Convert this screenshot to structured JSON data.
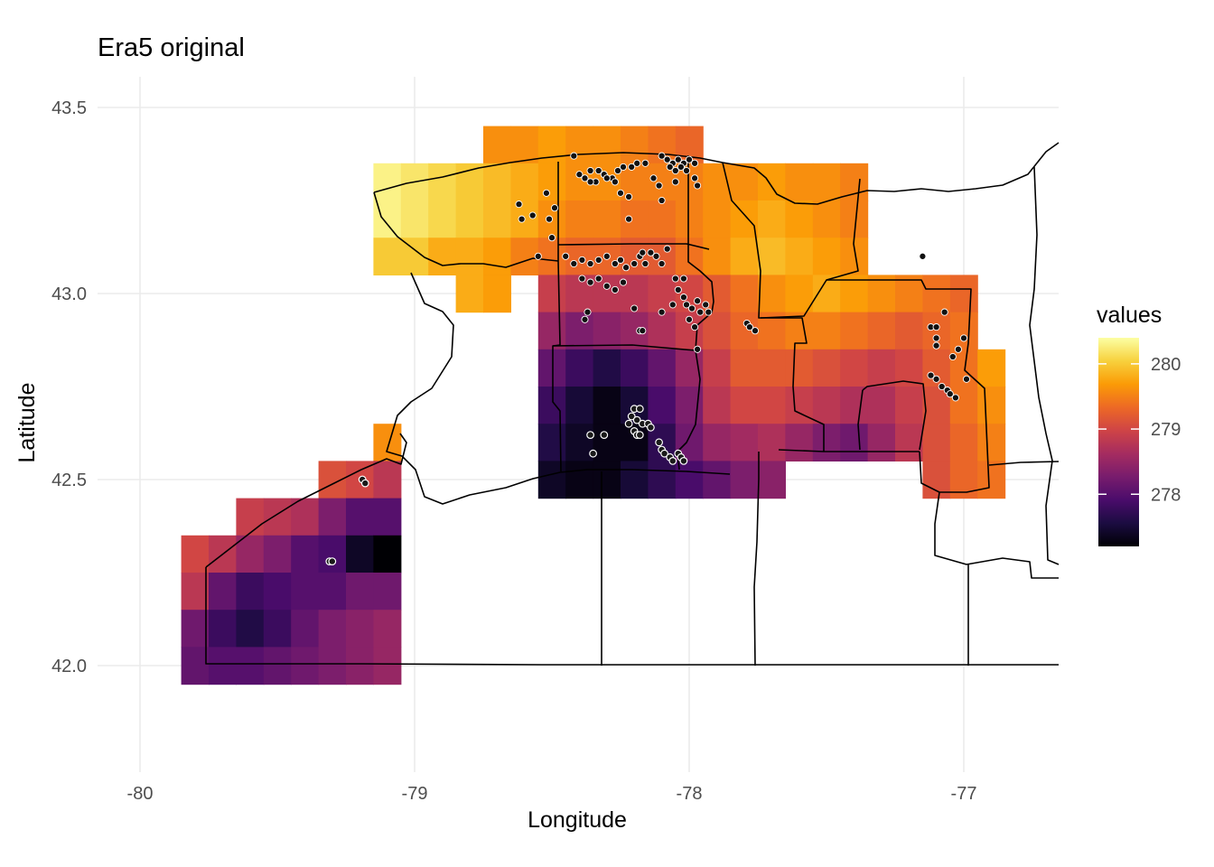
{
  "title": "Era5 original",
  "colors": {
    "gradient": [
      "#000004",
      "#1b0c41",
      "#4a0c6b",
      "#781c6d",
      "#a52c60",
      "#cf4446",
      "#ed6925",
      "#fb9b06",
      "#f7d13d",
      "#fcffa4"
    ],
    "grid": "#ebebeb",
    "outline": "#000000",
    "point_fill": "#111111",
    "point_stroke": "#ffffff"
  },
  "chart_data": {
    "type": "heatmap",
    "xlabel": "Longitude",
    "ylabel": "Latitude",
    "xlim": [
      -80.0,
      -76.6
    ],
    "ylim": [
      41.75,
      43.6
    ],
    "x_ticks": [
      {
        "value": -80,
        "label": "-80"
      },
      {
        "value": -79,
        "label": "-79"
      },
      {
        "value": -78,
        "label": "-78"
      },
      {
        "value": -77,
        "label": "-77"
      }
    ],
    "y_ticks": [
      {
        "value": 42.0,
        "label": "42.0"
      },
      {
        "value": 42.5,
        "label": "42.5"
      },
      {
        "value": 43.0,
        "label": "43.0"
      },
      {
        "value": 43.5,
        "label": "43.5"
      }
    ],
    "grid": true,
    "cell_size_deg": 0.1,
    "legend": {
      "title": "values",
      "position": "right",
      "min": 277.2,
      "max": 280.4,
      "ticks": [
        {
          "value": 278,
          "label": "278"
        },
        {
          "value": 279,
          "label": "279"
        },
        {
          "value": 280,
          "label": "280"
        }
      ]
    },
    "blocks": [
      {
        "lon": [
          -78.75,
          -77.95
        ],
        "lat": [
          43.35,
          43.45
        ],
        "values": [
          [
            279.6,
            279.6,
            279.7,
            279.6,
            279.6,
            279.5,
            279.4,
            279.3
          ]
        ]
      },
      {
        "lon": [
          -79.15,
          -77.35
        ],
        "lat": [
          43.25,
          43.35
        ],
        "values": [
          [
            280.3,
            280.2,
            280.1,
            280.0,
            279.9,
            279.8,
            279.7,
            279.6,
            279.6,
            279.5,
            279.5,
            279.5,
            279.6,
            279.6,
            279.7,
            279.6,
            279.6,
            279.5
          ]
        ]
      },
      {
        "lon": [
          -79.15,
          -77.35
        ],
        "lat": [
          43.15,
          43.25
        ],
        "values": [
          [
            280.3,
            280.2,
            280.1,
            280.0,
            279.9,
            279.8,
            279.6,
            279.5,
            279.5,
            279.4,
            279.4,
            279.5,
            279.6,
            279.7,
            279.8,
            279.7,
            279.6,
            279.5
          ]
        ]
      },
      {
        "lon": [
          -79.15,
          -77.35
        ],
        "lat": [
          43.05,
          43.15
        ],
        "values": [
          [
            280.0,
            280.0,
            279.8,
            279.8,
            279.7,
            279.5,
            279.4,
            279.3,
            279.3,
            279.2,
            279.2,
            279.4,
            279.6,
            279.8,
            279.9,
            279.8,
            279.7,
            279.6
          ]
        ]
      },
      {
        "lon": [
          -78.85,
          -78.65
        ],
        "lat": [
          42.95,
          43.05
        ],
        "values": [
          [
            279.8,
            279.7
          ]
        ]
      },
      {
        "lon": [
          -78.55,
          -76.95
        ],
        "lat": [
          42.95,
          43.05
        ],
        "values": [
          [
            278.9,
            278.8,
            278.8,
            278.8,
            278.9,
            279.0,
            279.2,
            279.4,
            279.6,
            279.7,
            279.8,
            279.7,
            279.6,
            279.5,
            279.4,
            279.3
          ]
        ]
      },
      {
        "lon": [
          -78.55,
          -76.95
        ],
        "lat": [
          42.85,
          42.95
        ],
        "values": [
          [
            278.5,
            278.3,
            278.4,
            278.5,
            278.7,
            278.9,
            279.1,
            279.3,
            279.4,
            279.5,
            279.5,
            279.4,
            279.3,
            279.2,
            279.3,
            279.4
          ]
        ]
      },
      {
        "lon": [
          -78.55,
          -76.85
        ],
        "lat": [
          42.75,
          42.85
        ],
        "values": [
          [
            278.1,
            277.8,
            277.6,
            277.8,
            278.1,
            278.5,
            278.9,
            279.2,
            279.2,
            279.2,
            279.1,
            279.0,
            278.9,
            279.0,
            279.2,
            279.4,
            279.7
          ]
        ]
      },
      {
        "lon": [
          -78.55,
          -76.85
        ],
        "lat": [
          42.65,
          42.75
        ],
        "values": [
          [
            277.8,
            277.5,
            277.3,
            277.5,
            277.9,
            278.3,
            278.8,
            279.0,
            279.0,
            278.9,
            278.8,
            278.7,
            278.7,
            278.9,
            279.1,
            279.4,
            279.6
          ]
        ]
      },
      {
        "lon": [
          -78.55,
          -76.85
        ],
        "lat": [
          42.55,
          42.65
        ],
        "values": [
          [
            277.6,
            277.4,
            277.3,
            277.3,
            277.7,
            278.2,
            278.5,
            278.6,
            278.7,
            278.5,
            278.3,
            278.2,
            278.5,
            278.8,
            279.1,
            279.3,
            279.5
          ]
        ]
      },
      {
        "lon": [
          -78.55,
          -77.65
        ],
        "lat": [
          42.45,
          42.55
        ],
        "values": [
          [
            277.4,
            277.3,
            277.3,
            277.5,
            277.7,
            277.9,
            278.1,
            278.3,
            278.4
          ]
        ]
      },
      {
        "lon": [
          -77.15,
          -76.85
        ],
        "lat": [
          42.45,
          42.55
        ],
        "values": [
          [
            279.1,
            279.3,
            279.4
          ]
        ]
      },
      {
        "lon": [
          -79.15,
          -79.05
        ],
        "lat": [
          42.55,
          42.65
        ],
        "values": [
          [
            279.6
          ]
        ]
      },
      {
        "lon": [
          -79.35,
          -79.05
        ],
        "lat": [
          42.45,
          42.55
        ],
        "values": [
          [
            279.1,
            279.0,
            278.8
          ]
        ]
      },
      {
        "lon": [
          -79.65,
          -79.05
        ],
        "lat": [
          42.35,
          42.45
        ],
        "values": [
          [
            278.9,
            278.8,
            278.7,
            278.3,
            278.0,
            278.0
          ]
        ]
      },
      {
        "lon": [
          -79.85,
          -79.05
        ],
        "lat": [
          42.25,
          42.35
        ],
        "values": [
          [
            279.0,
            278.8,
            278.5,
            278.3,
            278.0,
            277.9,
            277.4,
            277.2
          ]
        ]
      },
      {
        "lon": [
          -79.85,
          -79.05
        ],
        "lat": [
          42.15,
          42.25
        ],
        "values": [
          [
            278.8,
            278.1,
            277.8,
            277.9,
            278.0,
            278.0,
            278.2,
            278.2
          ]
        ]
      },
      {
        "lon": [
          -79.85,
          -79.05
        ],
        "lat": [
          42.05,
          42.15
        ],
        "values": [
          [
            278.2,
            277.8,
            277.6,
            277.8,
            278.1,
            278.3,
            278.4,
            278.5
          ]
        ]
      },
      {
        "lon": [
          -79.85,
          -79.05
        ],
        "lat": [
          41.95,
          42.05
        ],
        "values": [
          [
            278.1,
            278.0,
            278.0,
            278.1,
            278.2,
            278.3,
            278.4,
            278.5
          ]
        ]
      }
    ],
    "stations_dark": [
      [
        -78.57,
        43.21
      ],
      [
        -78.62,
        43.24
      ],
      [
        -78.52,
        43.27
      ],
      [
        -78.49,
        43.23
      ],
      [
        -78.51,
        43.2
      ],
      [
        -78.61,
        43.2
      ],
      [
        -78.42,
        43.37
      ],
      [
        -78.4,
        43.32
      ],
      [
        -78.38,
        43.31
      ],
      [
        -78.36,
        43.33
      ],
      [
        -78.34,
        43.3
      ],
      [
        -78.31,
        43.32
      ],
      [
        -78.28,
        43.31
      ],
      [
        -78.26,
        43.33
      ],
      [
        -78.24,
        43.34
      ],
      [
        -78.21,
        43.34
      ],
      [
        -78.19,
        43.35
      ],
      [
        -78.16,
        43.35
      ],
      [
        -78.36,
        43.3
      ],
      [
        -78.33,
        43.33
      ],
      [
        -78.3,
        43.31
      ],
      [
        -78.27,
        43.3
      ],
      [
        -78.25,
        43.27
      ],
      [
        -78.22,
        43.26
      ],
      [
        -78.1,
        43.37
      ],
      [
        -78.08,
        43.36
      ],
      [
        -78.06,
        43.35
      ],
      [
        -78.04,
        43.36
      ],
      [
        -78.02,
        43.35
      ],
      [
        -78.0,
        43.36
      ],
      [
        -77.98,
        43.35
      ],
      [
        -78.07,
        43.34
      ],
      [
        -78.05,
        43.33
      ],
      [
        -78.03,
        43.34
      ],
      [
        -78.01,
        43.33
      ],
      [
        -78.13,
        43.31
      ],
      [
        -78.11,
        43.29
      ],
      [
        -78.05,
        43.3
      ],
      [
        -77.98,
        43.31
      ],
      [
        -77.97,
        43.29
      ],
      [
        -78.1,
        43.25
      ],
      [
        -78.22,
        43.2
      ],
      [
        -78.5,
        43.15
      ],
      [
        -78.55,
        43.1
      ],
      [
        -78.45,
        43.1
      ],
      [
        -78.42,
        43.08
      ],
      [
        -78.39,
        43.09
      ],
      [
        -78.36,
        43.08
      ],
      [
        -78.33,
        43.09
      ],
      [
        -78.3,
        43.1
      ],
      [
        -78.27,
        43.08
      ],
      [
        -78.25,
        43.09
      ],
      [
        -78.23,
        43.07
      ],
      [
        -78.2,
        43.08
      ],
      [
        -78.18,
        43.1
      ],
      [
        -78.16,
        43.08
      ],
      [
        -78.14,
        43.11
      ],
      [
        -78.12,
        43.1
      ],
      [
        -78.1,
        43.08
      ],
      [
        -78.08,
        43.12
      ],
      [
        -78.39,
        43.04
      ],
      [
        -78.36,
        43.03
      ],
      [
        -78.33,
        43.04
      ],
      [
        -78.3,
        43.02
      ],
      [
        -78.27,
        43.01
      ],
      [
        -78.24,
        43.03
      ],
      [
        -78.37,
        42.95
      ],
      [
        -78.38,
        42.93
      ],
      [
        -78.2,
        42.96
      ],
      [
        -78.18,
        42.9
      ],
      [
        -78.17,
        42.9
      ],
      [
        -78.05,
        43.04
      ],
      [
        -78.04,
        43.01
      ],
      [
        -78.02,
        42.99
      ],
      [
        -78.01,
        42.97
      ],
      [
        -77.99,
        42.96
      ],
      [
        -77.97,
        42.98
      ],
      [
        -77.96,
        42.95
      ],
      [
        -77.94,
        42.97
      ],
      [
        -77.93,
        42.95
      ],
      [
        -78.06,
        42.97
      ],
      [
        -78.0,
        42.93
      ],
      [
        -77.98,
        42.91
      ],
      [
        -77.97,
        42.85
      ],
      [
        -78.1,
        42.95
      ],
      [
        -77.79,
        42.92
      ],
      [
        -77.78,
        42.91
      ],
      [
        -77.76,
        42.9
      ],
      [
        -77.12,
        42.91
      ],
      [
        -77.1,
        42.91
      ],
      [
        -77.1,
        42.88
      ],
      [
        -77.1,
        42.86
      ],
      [
        -77.04,
        42.83
      ],
      [
        -77.02,
        42.85
      ],
      [
        -77.0,
        42.88
      ],
      [
        -77.07,
        42.95
      ],
      [
        -77.12,
        42.78
      ],
      [
        -77.1,
        42.77
      ],
      [
        -77.08,
        42.75
      ],
      [
        -77.06,
        42.74
      ],
      [
        -77.05,
        42.73
      ],
      [
        -77.03,
        42.72
      ],
      [
        -76.99,
        42.77
      ],
      [
        -77.15,
        43.1
      ],
      [
        -78.17,
        43.11
      ],
      [
        -78.02,
        43.04
      ]
    ],
    "stations_light": [
      [
        -78.2,
        42.69
      ],
      [
        -78.18,
        42.69
      ],
      [
        -78.21,
        42.67
      ],
      [
        -78.19,
        42.66
      ],
      [
        -78.17,
        42.65
      ],
      [
        -78.15,
        42.65
      ],
      [
        -78.14,
        42.64
      ],
      [
        -78.2,
        42.63
      ],
      [
        -78.19,
        42.62
      ],
      [
        -78.18,
        42.62
      ],
      [
        -78.22,
        42.65
      ],
      [
        -78.36,
        42.62
      ],
      [
        -78.31,
        42.62
      ],
      [
        -78.35,
        42.57
      ],
      [
        -78.11,
        42.6
      ],
      [
        -78.1,
        42.58
      ],
      [
        -78.09,
        42.57
      ],
      [
        -78.07,
        42.56
      ],
      [
        -78.06,
        42.55
      ],
      [
        -78.04,
        42.57
      ],
      [
        -78.03,
        42.56
      ],
      [
        -78.02,
        42.55
      ],
      [
        -79.31,
        42.28
      ],
      [
        -79.3,
        42.28
      ],
      [
        -79.19,
        42.5
      ],
      [
        -79.18,
        42.49
      ]
    ]
  }
}
